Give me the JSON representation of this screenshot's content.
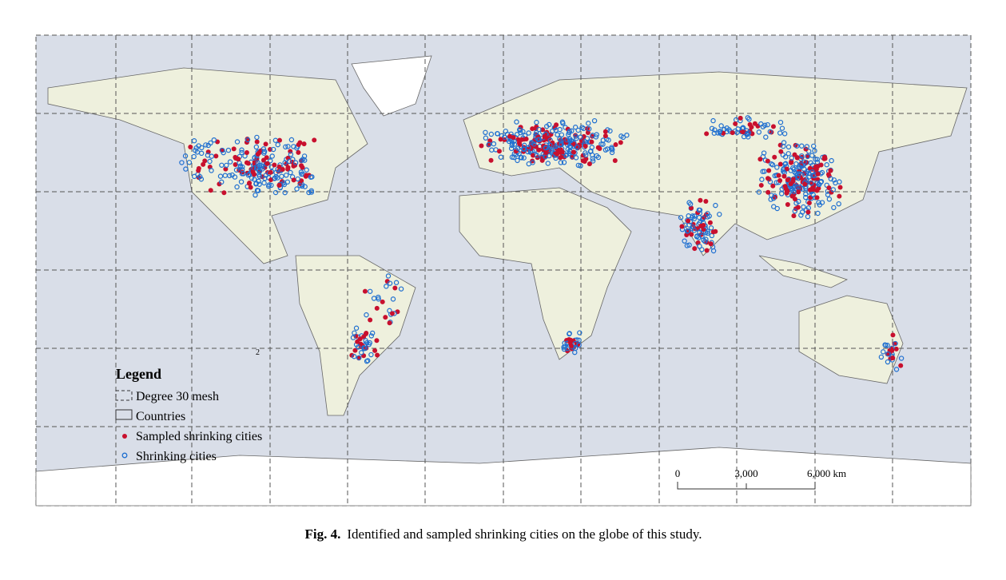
{
  "figure": {
    "legend": {
      "title": "Legend",
      "items": [
        "Degree 30 mesh",
        "Countries",
        "Sampled shrinking cities",
        "Shrinking cities"
      ]
    },
    "scale_bar": {
      "labels": [
        "0",
        "3,000",
        "6,000 km"
      ]
    },
    "map_label": "2",
    "caption": {
      "label": "Fig. 4.",
      "text": "Identified and sampled shrinking cities on the globe of this study."
    }
  }
}
